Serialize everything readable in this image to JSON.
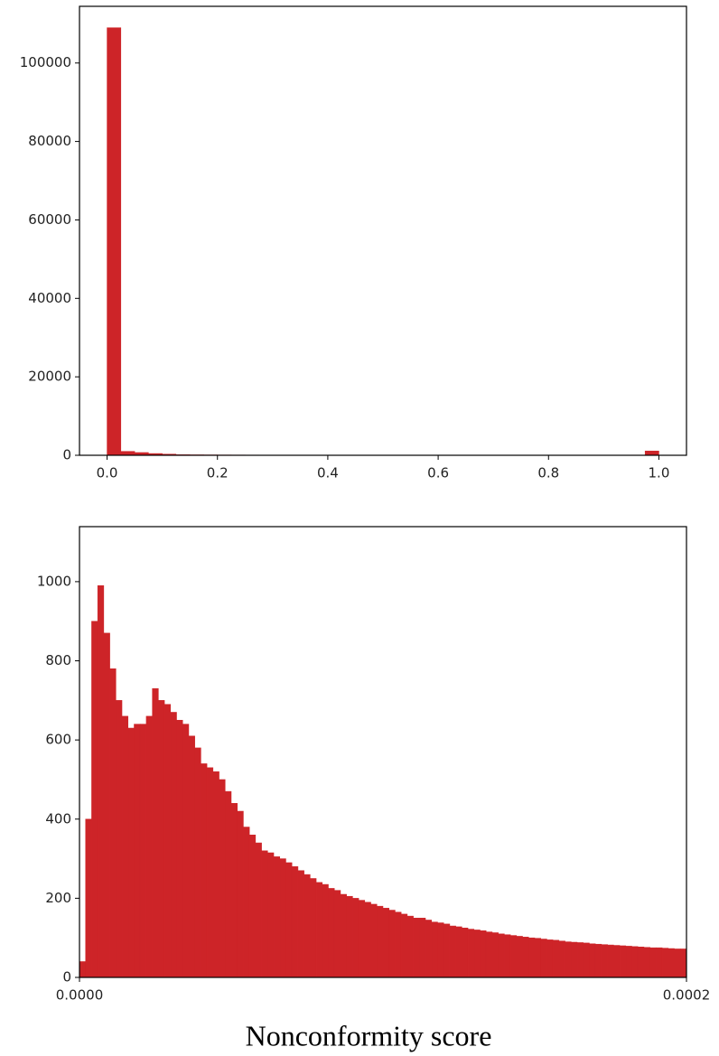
{
  "chart_data": [
    {
      "type": "histogram",
      "color": "#cd2428",
      "bins": [
        0,
        0.025,
        0.05,
        0.075,
        0.1,
        0.125,
        0.15,
        0.175,
        0.2,
        0.225,
        0.25,
        0.275,
        0.3,
        0.325,
        0.35,
        0.375,
        0.4,
        0.425,
        0.45,
        0.475,
        0.5,
        0.525,
        0.55,
        0.575,
        0.6,
        0.625,
        0.65,
        0.675,
        0.7,
        0.725,
        0.75,
        0.775,
        0.8,
        0.825,
        0.85,
        0.875,
        0.9,
        0.925,
        0.95,
        0.975,
        1.0
      ],
      "values": [
        109000,
        1000,
        700,
        450,
        300,
        150,
        120,
        100,
        80,
        70,
        60,
        50,
        40,
        40,
        35,
        30,
        30,
        25,
        25,
        20,
        20,
        20,
        20,
        20,
        20,
        20,
        20,
        20,
        20,
        20,
        20,
        20,
        20,
        20,
        20,
        25,
        30,
        40,
        60,
        1100
      ],
      "xlim": [
        -0.05,
        1.05
      ],
      "xticks": [
        {
          "value": 0,
          "label": "0.0"
        },
        0.2,
        0.4,
        0.6,
        0.8,
        {
          "value": 1,
          "label": "1.0"
        }
      ],
      "ylim": [
        0,
        114450
      ],
      "yticks": [
        0,
        20000,
        40000,
        60000,
        80000,
        100000
      ]
    },
    {
      "type": "histogram",
      "color": "#cd2428",
      "x_label": "Nonconformity score",
      "bins": [
        0,
        2e-06,
        4e-06,
        6e-06,
        8e-06,
        1e-05,
        1.2e-05,
        1.4e-05,
        1.6e-05,
        1.8e-05,
        2e-05,
        2.2e-05,
        2.4e-05,
        2.6e-05,
        2.8e-05,
        3e-05,
        3.2e-05,
        3.4e-05,
        3.6e-05,
        3.8e-05,
        4e-05,
        4.2e-05,
        4.4e-05,
        4.6e-05,
        4.8e-05,
        5e-05,
        5.2e-05,
        5.4e-05,
        5.6e-05,
        5.8e-05,
        6e-05,
        6.2e-05,
        6.4e-05,
        6.6e-05,
        6.8e-05,
        7e-05,
        7.2e-05,
        7.4e-05,
        7.6e-05,
        7.8e-05,
        8e-05,
        8.2e-05,
        8.4e-05,
        8.6e-05,
        8.8e-05,
        9e-05,
        9.2e-05,
        9.4e-05,
        9.6e-05,
        9.8e-05,
        0.0001,
        0.000102,
        0.000104,
        0.000106,
        0.000108,
        0.00011,
        0.000112,
        0.000114,
        0.000116,
        0.000118,
        0.00012,
        0.000122,
        0.000124,
        0.000126,
        0.000128,
        0.00013,
        0.000132,
        0.000134,
        0.000136,
        0.000138,
        0.00014,
        0.000142,
        0.000144,
        0.000146,
        0.000148,
        0.00015,
        0.000152,
        0.000154,
        0.000156,
        0.000158,
        0.00016,
        0.000162,
        0.000164,
        0.000166,
        0.000168,
        0.00017,
        0.000172,
        0.000174,
        0.000176,
        0.000178,
        0.00018,
        0.000182,
        0.000184,
        0.000186,
        0.000188,
        0.00019,
        0.000192,
        0.000194,
        0.000196,
        0.000198,
        0.0002
      ],
      "values": [
        40,
        400,
        900,
        990,
        870,
        780,
        700,
        660,
        630,
        640,
        640,
        660,
        730,
        700,
        690,
        670,
        650,
        640,
        610,
        580,
        540,
        530,
        520,
        500,
        470,
        440,
        420,
        380,
        360,
        340,
        320,
        315,
        305,
        300,
        290,
        280,
        270,
        260,
        250,
        240,
        235,
        225,
        220,
        210,
        205,
        200,
        195,
        190,
        185,
        180,
        175,
        170,
        165,
        160,
        155,
        150,
        150,
        145,
        140,
        138,
        135,
        130,
        128,
        125,
        122,
        120,
        118,
        115,
        113,
        110,
        108,
        106,
        104,
        102,
        100,
        99,
        97,
        95,
        94,
        92,
        90,
        89,
        88,
        87,
        85,
        84,
        83,
        82,
        81,
        80,
        79,
        78,
        77,
        76,
        75,
        75,
        74,
        73,
        72,
        72
      ],
      "xlim": [
        0,
        0.0002
      ],
      "xticks": [
        {
          "value": 0,
          "label": "0.0000"
        },
        {
          "value": 0.0002,
          "label": "0.0002"
        }
      ],
      "ylim": [
        0,
        1139
      ],
      "yticks": [
        0,
        200,
        400,
        600,
        800,
        1000
      ]
    }
  ]
}
